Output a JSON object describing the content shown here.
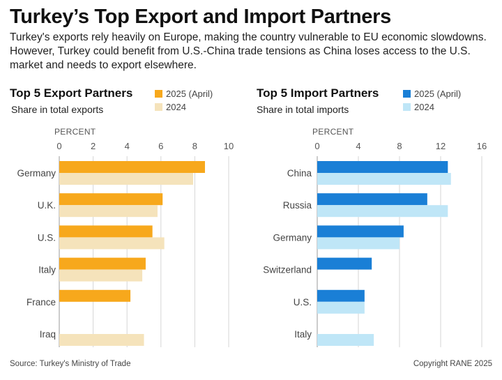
{
  "title": "Turkey’s Top Export and Import Partners",
  "subtitle": "Turkey's exports rely heavily on Europe, making the country vulnerable to EU economic slowdowns. However, Turkey could benefit from U.S.-China trade tensions as China loses access to the U.S. market and needs to export elsewhere.",
  "source": "Source: Turkey's Ministry of Trade",
  "copyright": "Copyright RANE 2025",
  "colors": {
    "export_2025": "#f7a81c",
    "export_2024": "#f5e3bb",
    "import_2025": "#1a7fd6",
    "import_2024": "#bfe6f7"
  },
  "chart_data": [
    {
      "type": "bar",
      "orientation": "horizontal",
      "title": "Top 5 Export Partners",
      "subtitle": "Share in total exports",
      "axis_label": "PERCENT",
      "xlim": [
        0,
        10
      ],
      "ticks": [
        0,
        2,
        4,
        6,
        8,
        10
      ],
      "categories": [
        "Germany",
        "U.K.",
        "U.S.",
        "Italy",
        "France",
        "Iraq"
      ],
      "series": [
        {
          "name": "2025 (April)",
          "values": [
            8.6,
            6.1,
            5.5,
            5.1,
            4.2,
            null
          ]
        },
        {
          "name": "2024",
          "values": [
            7.9,
            5.8,
            6.2,
            4.9,
            null,
            5.0
          ]
        }
      ],
      "legend_position": "top-right"
    },
    {
      "type": "bar",
      "orientation": "horizontal",
      "title": "Top 5 Import Partners",
      "subtitle": "Share in total imports",
      "axis_label": "PERCENT",
      "xlim": [
        0,
        16
      ],
      "ticks": [
        0,
        4,
        8,
        12,
        16
      ],
      "categories": [
        "China",
        "Russia",
        "Germany",
        "Switzerland",
        "U.S.",
        "Italy"
      ],
      "series": [
        {
          "name": "2025 (April)",
          "values": [
            12.7,
            10.7,
            8.4,
            5.3,
            4.6,
            null
          ]
        },
        {
          "name": "2024",
          "values": [
            13.0,
            12.7,
            8.0,
            null,
            4.6,
            5.5
          ]
        }
      ],
      "legend_position": "top-right"
    }
  ]
}
